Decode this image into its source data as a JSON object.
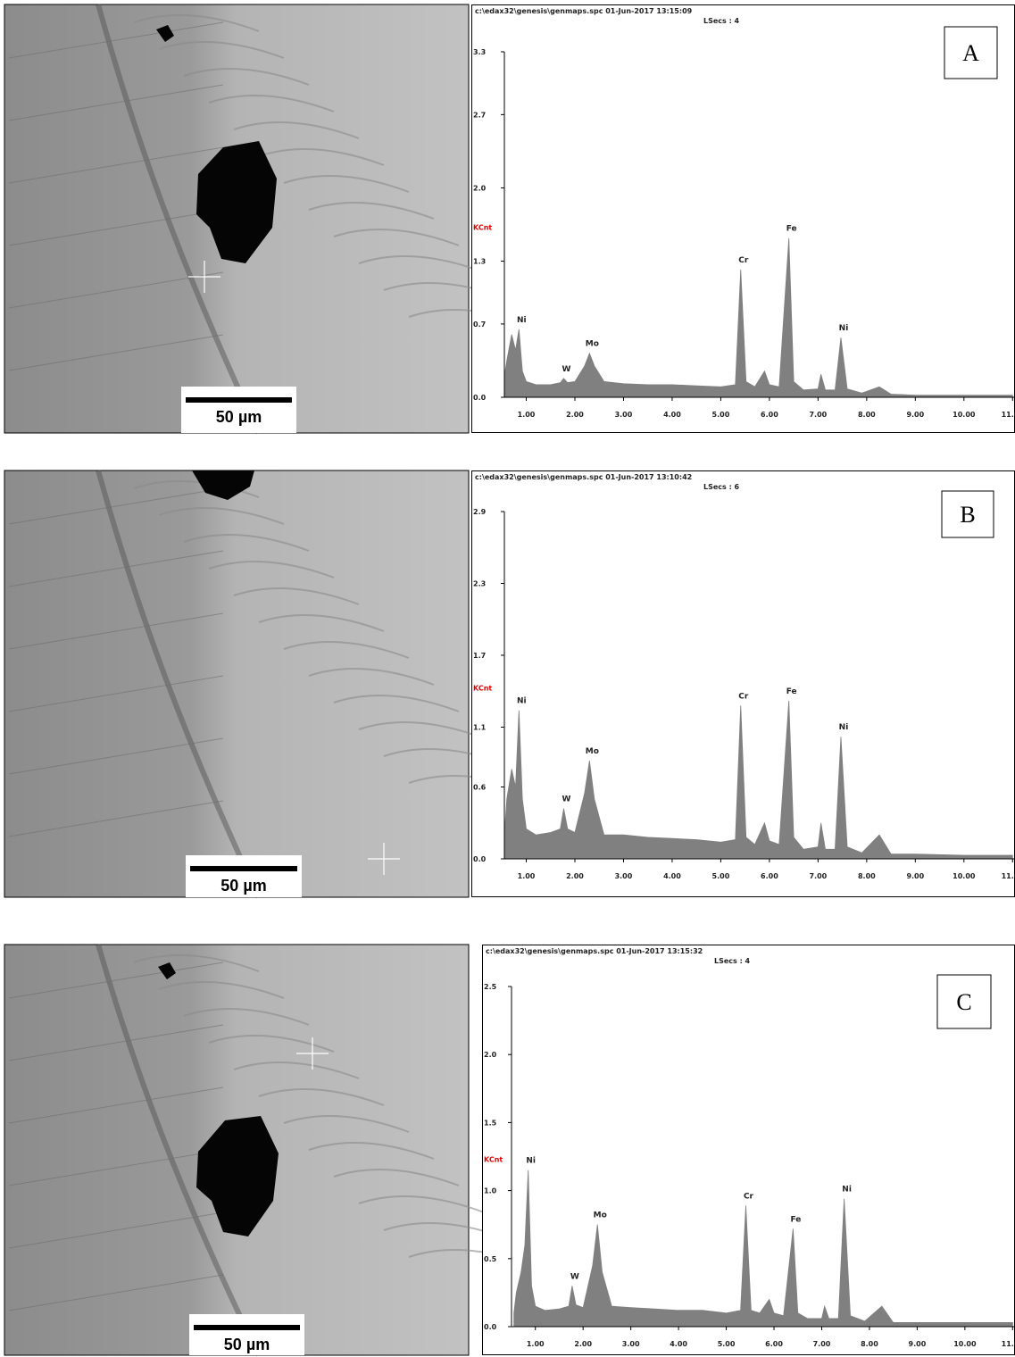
{
  "images": [
    {
      "scale_bar": "50 µm"
    },
    {
      "scale_bar": "50 µm"
    },
    {
      "scale_bar": "50 µm"
    }
  ],
  "chart_data": [
    {
      "type": "area",
      "panel_label": "A",
      "header": "c:\\edax32\\genesis\\genmaps.spc  01-Jun-2017 13:15:09",
      "subheader": "LSecs :  4",
      "y_label": "KCnt",
      "color": "#808080",
      "x": [
        0.55,
        0.6,
        0.7,
        0.78,
        0.85,
        0.92,
        1.0,
        1.2,
        1.5,
        1.7,
        1.77,
        1.85,
        2.0,
        2.2,
        2.3,
        2.4,
        2.6,
        3.0,
        3.5,
        4.0,
        4.5,
        5.0,
        5.3,
        5.41,
        5.52,
        5.7,
        5.9,
        6.0,
        6.2,
        6.4,
        6.5,
        6.7,
        7.0,
        7.06,
        7.15,
        7.35,
        7.47,
        7.6,
        7.9,
        8.26,
        8.5,
        9.0,
        10.0,
        11.0
      ],
      "values": [
        0.2,
        0.35,
        0.6,
        0.45,
        0.65,
        0.25,
        0.15,
        0.12,
        0.12,
        0.14,
        0.18,
        0.14,
        0.15,
        0.3,
        0.42,
        0.3,
        0.15,
        0.13,
        0.12,
        0.12,
        0.11,
        0.1,
        0.12,
        1.22,
        0.15,
        0.1,
        0.25,
        0.12,
        0.1,
        1.52,
        0.15,
        0.07,
        0.08,
        0.22,
        0.07,
        0.07,
        0.57,
        0.08,
        0.04,
        0.1,
        0.03,
        0.02,
        0.02,
        0.02
      ],
      "peak_labels": [
        "Ni",
        "W",
        "Mo",
        "Cr",
        "Fe",
        "Ni"
      ],
      "xlim": [
        0.55,
        11.05
      ],
      "ylim": [
        0,
        3.3
      ],
      "xticks": [
        {
          "value": 1,
          "label": "1.00"
        },
        {
          "value": 2,
          "label": "2.00"
        },
        {
          "value": 3,
          "label": "3.00"
        },
        {
          "value": 4,
          "label": "4.00"
        },
        {
          "value": 5,
          "label": "5.00"
        },
        {
          "value": 6,
          "label": "6.00"
        },
        {
          "value": 7,
          "label": "7.00"
        },
        {
          "value": 8,
          "label": "8.00"
        },
        {
          "value": 9,
          "label": "9.00"
        },
        {
          "value": 10,
          "label": "10.00"
        },
        {
          "value": 11,
          "label": "11.00"
        }
      ],
      "yticks": [
        {
          "value": 0,
          "label": "0.0"
        },
        0.7,
        1.3,
        {
          "value": 2,
          "label": "2.0"
        },
        2.7,
        3.3
      ]
    },
    {
      "type": "area",
      "panel_label": "B",
      "header": "c:\\edax32\\genesis\\genmaps.spc  01-Jun-2017 13:10:42",
      "subheader": "LSecs :  6",
      "y_label": "KCnt",
      "color": "#808080",
      "x": [
        0.55,
        0.6,
        0.7,
        0.78,
        0.85,
        0.92,
        1.0,
        1.2,
        1.5,
        1.7,
        1.77,
        1.85,
        2.0,
        2.2,
        2.3,
        2.4,
        2.6,
        3.0,
        3.5,
        4.0,
        4.5,
        5.0,
        5.3,
        5.41,
        5.52,
        5.7,
        5.9,
        6.0,
        6.2,
        6.4,
        6.5,
        6.7,
        7.0,
        7.06,
        7.15,
        7.35,
        7.47,
        7.6,
        7.9,
        8.26,
        8.5,
        9.0,
        10.0,
        11.0
      ],
      "values": [
        0.2,
        0.5,
        0.75,
        0.6,
        1.24,
        0.5,
        0.25,
        0.2,
        0.22,
        0.25,
        0.42,
        0.25,
        0.22,
        0.55,
        0.82,
        0.5,
        0.2,
        0.2,
        0.18,
        0.17,
        0.16,
        0.14,
        0.16,
        1.28,
        0.18,
        0.12,
        0.3,
        0.15,
        0.12,
        1.32,
        0.18,
        0.08,
        0.1,
        0.3,
        0.08,
        0.08,
        1.02,
        0.1,
        0.05,
        0.2,
        0.04,
        0.04,
        0.03,
        0.03
      ],
      "peak_labels": [
        "Ni",
        "W",
        "Mo",
        "Cr",
        "Fe",
        "Ni"
      ],
      "xlim": [
        0.55,
        11.05
      ],
      "ylim": [
        0,
        2.9
      ],
      "xticks": [
        {
          "value": 1,
          "label": "1.00"
        },
        {
          "value": 2,
          "label": "2.00"
        },
        {
          "value": 3,
          "label": "3.00"
        },
        {
          "value": 4,
          "label": "4.00"
        },
        {
          "value": 5,
          "label": "5.00"
        },
        {
          "value": 6,
          "label": "6.00"
        },
        {
          "value": 7,
          "label": "7.00"
        },
        {
          "value": 8,
          "label": "8.00"
        },
        {
          "value": 9,
          "label": "9.00"
        },
        {
          "value": 10,
          "label": "10.00"
        },
        {
          "value": 11,
          "label": "11.00"
        }
      ],
      "yticks": [
        {
          "value": 0,
          "label": "0.0"
        },
        0.6,
        1.1,
        1.7,
        2.3,
        2.9
      ]
    },
    {
      "type": "area",
      "panel_label": "C",
      "header": "c:\\edax32\\genesis\\genmaps.spc  01-Jun-2017 13:15:32",
      "subheader": "LSecs :  4",
      "y_label": "KCnt",
      "color": "#808080",
      "x": [
        0.55,
        0.6,
        0.7,
        0.78,
        0.85,
        0.92,
        1.0,
        1.2,
        1.5,
        1.7,
        1.77,
        1.85,
        2.0,
        2.2,
        2.3,
        2.4,
        2.6,
        3.0,
        3.5,
        4.0,
        4.5,
        5.0,
        5.3,
        5.41,
        5.52,
        5.7,
        5.9,
        6.0,
        6.2,
        6.4,
        6.5,
        6.7,
        7.0,
        7.06,
        7.15,
        7.35,
        7.47,
        7.6,
        7.9,
        8.26,
        8.5,
        9.0,
        10.0,
        11.0
      ],
      "values": [
        0.1,
        0.25,
        0.4,
        0.6,
        1.15,
        0.3,
        0.15,
        0.12,
        0.13,
        0.15,
        0.3,
        0.16,
        0.14,
        0.45,
        0.75,
        0.4,
        0.15,
        0.14,
        0.13,
        0.12,
        0.12,
        0.1,
        0.12,
        0.89,
        0.12,
        0.1,
        0.2,
        0.1,
        0.08,
        0.72,
        0.1,
        0.06,
        0.06,
        0.15,
        0.06,
        0.06,
        0.94,
        0.08,
        0.04,
        0.15,
        0.03,
        0.03,
        0.03,
        0.03
      ],
      "peak_labels": [
        "Ni",
        "W",
        "Mo",
        "Cr",
        "Fe",
        "Ni"
      ],
      "xlim": [
        0.5,
        11.05
      ],
      "ylim": [
        0,
        2.5
      ],
      "xticks": [
        {
          "value": 1,
          "label": "1.00"
        },
        {
          "value": 2,
          "label": "2.00"
        },
        {
          "value": 3,
          "label": "3.00"
        },
        {
          "value": 4,
          "label": "4.00"
        },
        {
          "value": 5,
          "label": "5.00"
        },
        {
          "value": 6,
          "label": "6.00"
        },
        {
          "value": 7,
          "label": "7.00"
        },
        {
          "value": 8,
          "label": "8.00"
        },
        {
          "value": 9,
          "label": "9.00"
        },
        {
          "value": 10,
          "label": "10.00"
        },
        {
          "value": 11,
          "label": "11.00"
        }
      ],
      "yticks": [
        {
          "value": 0,
          "label": "0.0"
        },
        0.5,
        {
          "value": 1,
          "label": "1.0"
        },
        1.5,
        {
          "value": 2,
          "label": "2.0"
        },
        2.5
      ]
    }
  ]
}
